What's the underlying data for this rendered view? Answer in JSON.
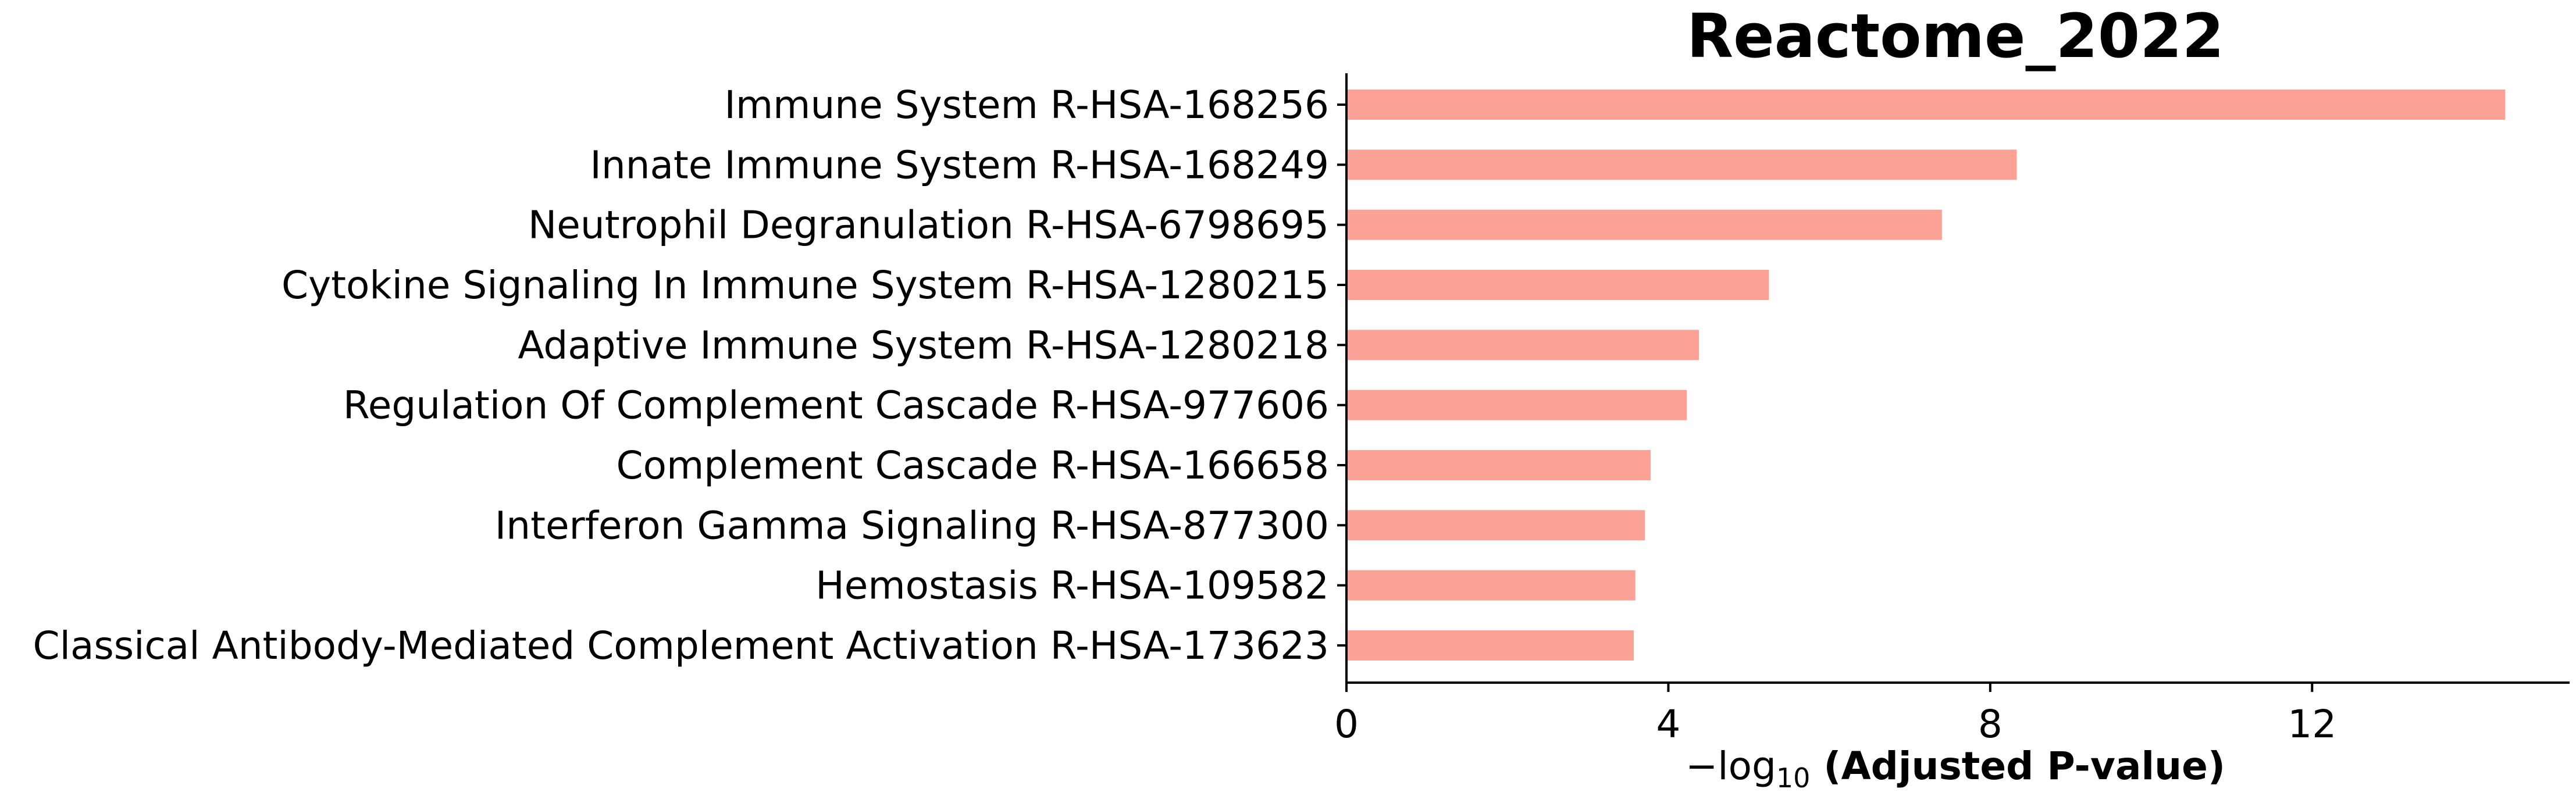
{
  "chart_data": {
    "type": "bar",
    "orientation": "horizontal",
    "title": "Reactome_2022",
    "xlabel": {
      "prefix": "−log",
      "subscript": "10",
      "suffix": " (Adjusted P-value)"
    },
    "ylabel": "",
    "categories": [
      "Immune System R-HSA-168256",
      "Innate Immune System R-HSA-168249",
      "Neutrophil Degranulation R-HSA-6798695",
      "Cytokine Signaling In Immune System R-HSA-1280215",
      "Adaptive Immune System R-HSA-1280218",
      "Regulation Of Complement Cascade R-HSA-977606",
      "Complement Cascade R-HSA-166658",
      "Interferon Gamma Signaling R-HSA-877300",
      "Hemostasis R-HSA-109582",
      "Classical Antibody-Mediated Complement Activation R-HSA-173623"
    ],
    "values": [
      14.4,
      8.33,
      7.4,
      5.25,
      4.38,
      4.23,
      3.78,
      3.71,
      3.59,
      3.57
    ],
    "xlim": [
      0,
      15.2
    ],
    "xticks": [
      0,
      4,
      8,
      12
    ],
    "xtick_labels": [
      "0",
      "4",
      "8",
      "12"
    ],
    "bar_color": "#fba195",
    "grid": false,
    "legend": "none"
  }
}
